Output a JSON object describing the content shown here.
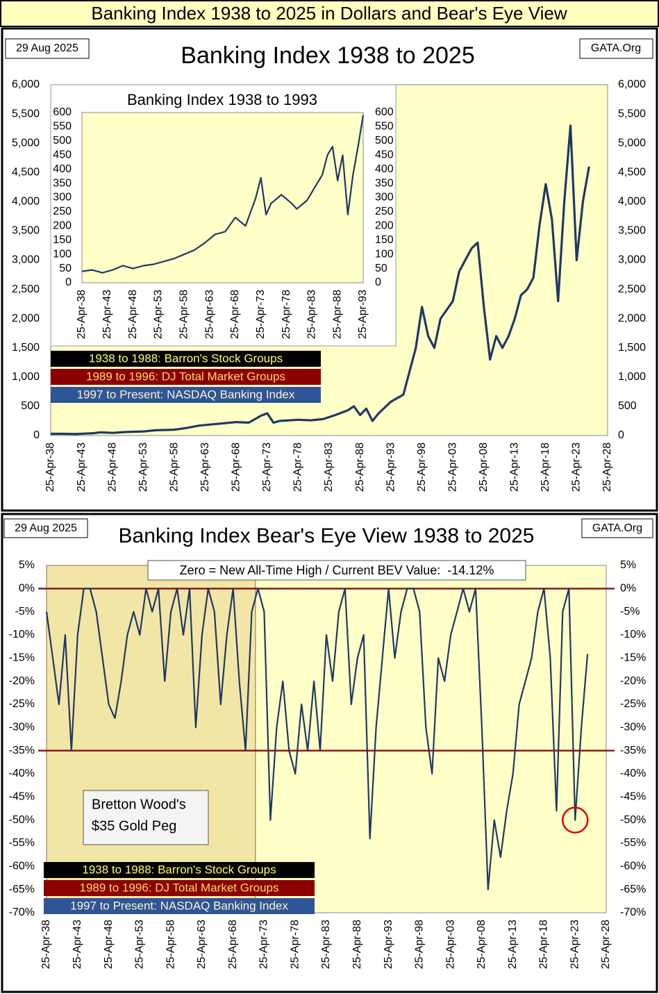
{
  "page_title": "Banking Index 1938 to 2025 in Dollars and Bear's Eye View",
  "chart_data": [
    {
      "type": "line",
      "title": "Banking Index 1938 to 2025",
      "date_label": "29 Aug 2025",
      "source": "GATA.Org",
      "notes": [
        "1938 to 1988: Barron's Stock Groups",
        "1989 to 1996: DJ Total Market Groups",
        "1997 to Present: NASDAQ Banking Index"
      ],
      "color": "#1f3864",
      "grid": false,
      "x": [
        1938,
        1940,
        1942,
        1945,
        1946,
        1948,
        1950,
        1953,
        1955,
        1958,
        1960,
        1962,
        1965,
        1968,
        1970,
        1972,
        1973,
        1974,
        1975,
        1978,
        1980,
        1982,
        1984,
        1986,
        1987,
        1988,
        1989,
        1990,
        1991,
        1993,
        1995,
        1997,
        1998,
        1999,
        2000,
        2001,
        2003,
        2004,
        2005,
        2006,
        2007,
        2008,
        2009,
        2010,
        2011,
        2012,
        2013,
        2014,
        2015,
        2016,
        2017,
        2018,
        2019,
        2020,
        2021,
        2022,
        2023,
        2024,
        2025
      ],
      "values": [
        30,
        30,
        25,
        40,
        55,
        45,
        60,
        70,
        90,
        100,
        130,
        170,
        200,
        230,
        220,
        340,
        380,
        220,
        250,
        270,
        260,
        280,
        350,
        430,
        500,
        350,
        460,
        250,
        380,
        580,
        700,
        1500,
        2200,
        1700,
        1500,
        2000,
        2300,
        2800,
        3000,
        3200,
        3300,
        2200,
        1300,
        1700,
        1500,
        1700,
        2000,
        2400,
        2500,
        2700,
        3600,
        4300,
        3700,
        2300,
        4000,
        5300,
        3000,
        4000,
        4600
      ],
      "xlim": [
        1938,
        2028
      ],
      "xticks": [
        {
          "value": 1938,
          "label": "25-Apr-38"
        },
        {
          "value": 1943,
          "label": "25-Apr-43"
        },
        {
          "value": 1948,
          "label": "25-Apr-48"
        },
        {
          "value": 1953,
          "label": "25-Apr-53"
        },
        {
          "value": 1958,
          "label": "25-Apr-58"
        },
        {
          "value": 1963,
          "label": "25-Apr-63"
        },
        {
          "value": 1968,
          "label": "25-Apr-68"
        },
        {
          "value": 1973,
          "label": "25-Apr-73"
        },
        {
          "value": 1978,
          "label": "25-Apr-78"
        },
        {
          "value": 1983,
          "label": "25-Apr-83"
        },
        {
          "value": 1988,
          "label": "25-Apr-88"
        },
        {
          "value": 1993,
          "label": "25-Apr-93"
        },
        {
          "value": 1998,
          "label": "25-Apr-98"
        },
        {
          "value": 2003,
          "label": "25-Apr-03"
        },
        {
          "value": 2008,
          "label": "25-Apr-08"
        },
        {
          "value": 2013,
          "label": "25-Apr-13"
        },
        {
          "value": 2018,
          "label": "25-Apr-18"
        },
        {
          "value": 2023,
          "label": "25-Apr-23"
        },
        {
          "value": 2028,
          "label": "25-Apr-28"
        }
      ],
      "ylim": [
        0,
        6000
      ],
      "yticks": [
        0,
        500,
        {
          "value": 1000,
          "label": "1,000"
        },
        {
          "value": 1500,
          "label": "1,500"
        },
        {
          "value": 2000,
          "label": "2,000"
        },
        {
          "value": 2500,
          "label": "2,500"
        },
        {
          "value": 3000,
          "label": "3,000"
        },
        {
          "value": 3500,
          "label": "3,500"
        },
        {
          "value": 4000,
          "label": "4,000"
        },
        {
          "value": 4500,
          "label": "4,500"
        },
        {
          "value": 5000,
          "label": "5,000"
        },
        {
          "value": 5500,
          "label": "5,500"
        },
        {
          "value": 6000,
          "label": "6,000"
        }
      ]
    },
    {
      "type": "line",
      "title": "Banking Index 1938 to 1993",
      "color": "#1f3864",
      "grid": false,
      "x": [
        1938,
        1940,
        1942,
        1944,
        1946,
        1948,
        1950,
        1952,
        1954,
        1956,
        1958,
        1960,
        1962,
        1964,
        1966,
        1968,
        1970,
        1972,
        1973,
        1974,
        1975,
        1977,
        1979,
        1980,
        1982,
        1984,
        1985,
        1986,
        1987,
        1988,
        1989,
        1990,
        1991,
        1992,
        1993
      ],
      "values": [
        40,
        45,
        35,
        45,
        60,
        50,
        60,
        65,
        75,
        85,
        100,
        115,
        140,
        170,
        180,
        230,
        200,
        300,
        370,
        240,
        280,
        310,
        280,
        260,
        290,
        350,
        380,
        450,
        480,
        360,
        450,
        240,
        380,
        480,
        590
      ],
      "xlim": [
        1938,
        1993
      ],
      "xticks": [
        {
          "value": 1938,
          "label": "25-Apr-38"
        },
        {
          "value": 1943,
          "label": "25-Apr-43"
        },
        {
          "value": 1948,
          "label": "25-Apr-48"
        },
        {
          "value": 1953,
          "label": "25-Apr-53"
        },
        {
          "value": 1958,
          "label": "25-Apr-58"
        },
        {
          "value": 1963,
          "label": "25-Apr-63"
        },
        {
          "value": 1968,
          "label": "25-Apr-68"
        },
        {
          "value": 1973,
          "label": "25-Apr-73"
        },
        {
          "value": 1978,
          "label": "25-Apr-78"
        },
        {
          "value": 1983,
          "label": "25-Apr-83"
        },
        {
          "value": 1988,
          "label": "25-Apr-88"
        },
        {
          "value": 1993,
          "label": "25-Apr-93"
        }
      ],
      "ylim": [
        0,
        600
      ],
      "yticks": [
        0,
        50,
        100,
        150,
        200,
        250,
        300,
        350,
        400,
        450,
        500,
        550,
        600
      ]
    },
    {
      "type": "line",
      "title": "Banking Index Bear's Eye View 1938 to 2025",
      "date_label": "29 Aug 2025",
      "source": "GATA.Org",
      "annotation": "Zero = New All-Time High / Current BEV Value:  -14.12%",
      "shaded_label": [
        "Bretton Wood's",
        "$35 Gold Peg"
      ],
      "shaded_xrange": [
        1938,
        1971.6
      ],
      "notes": [
        "1938 to 1988: Barron's Stock Groups",
        "1989 to 1996: DJ Total Market Groups",
        "1997 to Present: NASDAQ Banking Index"
      ],
      "reference_lines": [
        0,
        -35
      ],
      "highlight_x": 2023,
      "color": "#1f3864",
      "grid": false,
      "x": [
        1938,
        1939,
        1940,
        1941,
        1942,
        1943,
        1944,
        1945,
        1946,
        1947,
        1948,
        1949,
        1950,
        1951,
        1952,
        1953,
        1954,
        1955,
        1956,
        1957,
        1958,
        1959,
        1960,
        1961,
        1962,
        1963,
        1964,
        1965,
        1966,
        1967,
        1968,
        1969,
        1970,
        1971,
        1972,
        1973,
        1974,
        1975,
        1976,
        1977,
        1978,
        1979,
        1980,
        1981,
        1982,
        1983,
        1984,
        1985,
        1986,
        1987,
        1988,
        1989,
        1990,
        1991,
        1992,
        1993,
        1994,
        1995,
        1996,
        1997,
        1998,
        1999,
        2000,
        2001,
        2002,
        2003,
        2004,
        2005,
        2006,
        2007,
        2008,
        2009,
        2010,
        2011,
        2012,
        2013,
        2014,
        2015,
        2016,
        2017,
        2018,
        2019,
        2020,
        2021,
        2022,
        2023,
        2024,
        2025
      ],
      "values": [
        -5,
        -15,
        -25,
        -10,
        -35,
        -10,
        0,
        0,
        -5,
        -15,
        -25,
        -28,
        -20,
        -10,
        -5,
        -10,
        0,
        -5,
        0,
        -20,
        -5,
        0,
        -10,
        0,
        -30,
        -10,
        0,
        -5,
        -25,
        -10,
        0,
        -20,
        -35,
        -5,
        0,
        -5,
        -50,
        -30,
        -20,
        -35,
        -40,
        -25,
        -35,
        -20,
        -35,
        -10,
        -20,
        -5,
        0,
        -25,
        -15,
        -10,
        -54,
        -30,
        -15,
        0,
        -15,
        -5,
        0,
        0,
        -5,
        -30,
        -40,
        -15,
        -20,
        -10,
        -5,
        0,
        -5,
        0,
        -30,
        -65,
        -50,
        -58,
        -48,
        -40,
        -25,
        -20,
        -15,
        -5,
        0,
        -15,
        -48,
        -5,
        0,
        -50,
        -30,
        -14.12
      ],
      "xlim": [
        1938,
        2028
      ],
      "xticks": [
        {
          "value": 1938,
          "label": "25-Apr-38"
        },
        {
          "value": 1943,
          "label": "25-Apr-43"
        },
        {
          "value": 1948,
          "label": "25-Apr-48"
        },
        {
          "value": 1953,
          "label": "25-Apr-53"
        },
        {
          "value": 1958,
          "label": "25-Apr-58"
        },
        {
          "value": 1963,
          "label": "25-Apr-63"
        },
        {
          "value": 1968,
          "label": "25-Apr-68"
        },
        {
          "value": 1973,
          "label": "25-Apr-73"
        },
        {
          "value": 1978,
          "label": "25-Apr-78"
        },
        {
          "value": 1983,
          "label": "25-Apr-83"
        },
        {
          "value": 1988,
          "label": "25-Apr-88"
        },
        {
          "value": 1993,
          "label": "25-Apr-93"
        },
        {
          "value": 1998,
          "label": "25-Apr-98"
        },
        {
          "value": 2003,
          "label": "25-Apr-03"
        },
        {
          "value": 2008,
          "label": "25-Apr-08"
        },
        {
          "value": 2013,
          "label": "25-Apr-13"
        },
        {
          "value": 2018,
          "label": "25-Apr-18"
        },
        {
          "value": 2023,
          "label": "25-Apr-23"
        },
        {
          "value": 2028,
          "label": "25-Apr-28"
        }
      ],
      "ylim": [
        -70,
        5
      ],
      "yticks": [
        {
          "value": -70,
          "label": "-70%"
        },
        {
          "value": -65,
          "label": "-65%"
        },
        {
          "value": -60,
          "label": "-60%"
        },
        {
          "value": -55,
          "label": "-55%"
        },
        {
          "value": -50,
          "label": "-50%"
        },
        {
          "value": -45,
          "label": "-45%"
        },
        {
          "value": -40,
          "label": "-40%"
        },
        {
          "value": -35,
          "label": "-35%"
        },
        {
          "value": -30,
          "label": "-30%"
        },
        {
          "value": -25,
          "label": "-25%"
        },
        {
          "value": -20,
          "label": "-20%"
        },
        {
          "value": -15,
          "label": "-15%"
        },
        {
          "value": -10,
          "label": "-10%"
        },
        {
          "value": -5,
          "label": "-5%"
        },
        {
          "value": 0,
          "label": "0%"
        },
        {
          "value": 5,
          "label": "5%"
        }
      ]
    }
  ]
}
